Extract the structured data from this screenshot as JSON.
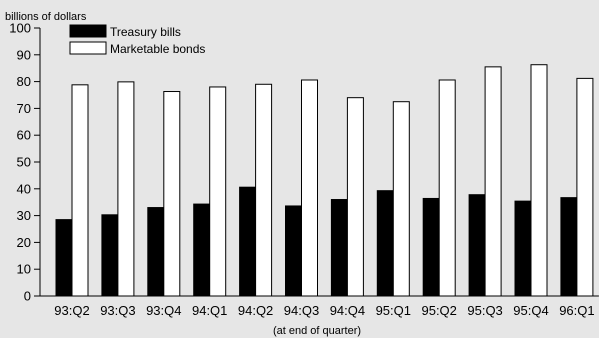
{
  "chart_data": {
    "type": "bar",
    "unit_label": "billions of dollars",
    "xlabel": "(at end of quarter)",
    "ylim": [
      0,
      100
    ],
    "yticks": [
      0,
      10,
      20,
      30,
      40,
      50,
      60,
      70,
      80,
      90,
      100
    ],
    "categories": [
      "93:Q2",
      "93:Q3",
      "93:Q4",
      "94:Q1",
      "94:Q2",
      "94:Q3",
      "94:Q4",
      "95:Q1",
      "95:Q2",
      "95:Q3",
      "95:Q4",
      "96:Q1"
    ],
    "series": [
      {
        "name": "Treasury bills",
        "color": "#000000",
        "values": [
          28.5,
          30.3,
          33,
          34.3,
          40.6,
          33.6,
          36,
          39.3,
          36.4,
          37.8,
          35.4,
          36.7
        ]
      },
      {
        "name": "Marketable bonds",
        "color": "#ffffff",
        "values": [
          78.8,
          79.9,
          76.3,
          78,
          79,
          80.6,
          74,
          72.5,
          80.6,
          85.5,
          86.3,
          81.2
        ]
      }
    ],
    "legend_position": "top-left",
    "grid": false
  }
}
